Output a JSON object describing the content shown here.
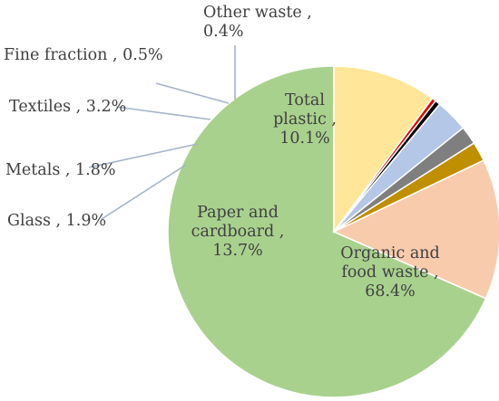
{
  "chart_data": {
    "type": "pie",
    "title": "",
    "slices": [
      {
        "name": "Organic and food waste",
        "value": 68.4,
        "label_lines": [
          "Organic and",
          "food waste ,",
          "68.4%"
        ],
        "color": "#A9D18E"
      },
      {
        "name": "Paper and cardboard",
        "value": 13.7,
        "label_lines": [
          "Paper and",
          "cardboard ,",
          "13.7%"
        ],
        "color": "#F8CBAD"
      },
      {
        "name": "Glass",
        "value": 1.9,
        "label_lines": [
          "Glass , 1.9%"
        ],
        "color": "#BF8F00"
      },
      {
        "name": "Metals",
        "value": 1.8,
        "label_lines": [
          "Metals , 1.8%"
        ],
        "color": "#7F7F7F"
      },
      {
        "name": "Textiles",
        "value": 3.2,
        "label_lines": [
          "Textiles , 3.2%"
        ],
        "color": "#B4C7E7"
      },
      {
        "name": "Fine fraction",
        "value": 0.5,
        "label_lines": [
          "Fine fraction , 0.5%"
        ],
        "color": "#000000"
      },
      {
        "name": "Other waste",
        "value": 0.4,
        "label_lines": [
          "Other waste ,",
          "0.4%"
        ],
        "color": "#E00000"
      },
      {
        "name": "Total plastic",
        "value": 10.1,
        "label_lines": [
          "Total",
          "plastic ,",
          "10.1%"
        ],
        "color": "#FFE699"
      }
    ]
  }
}
